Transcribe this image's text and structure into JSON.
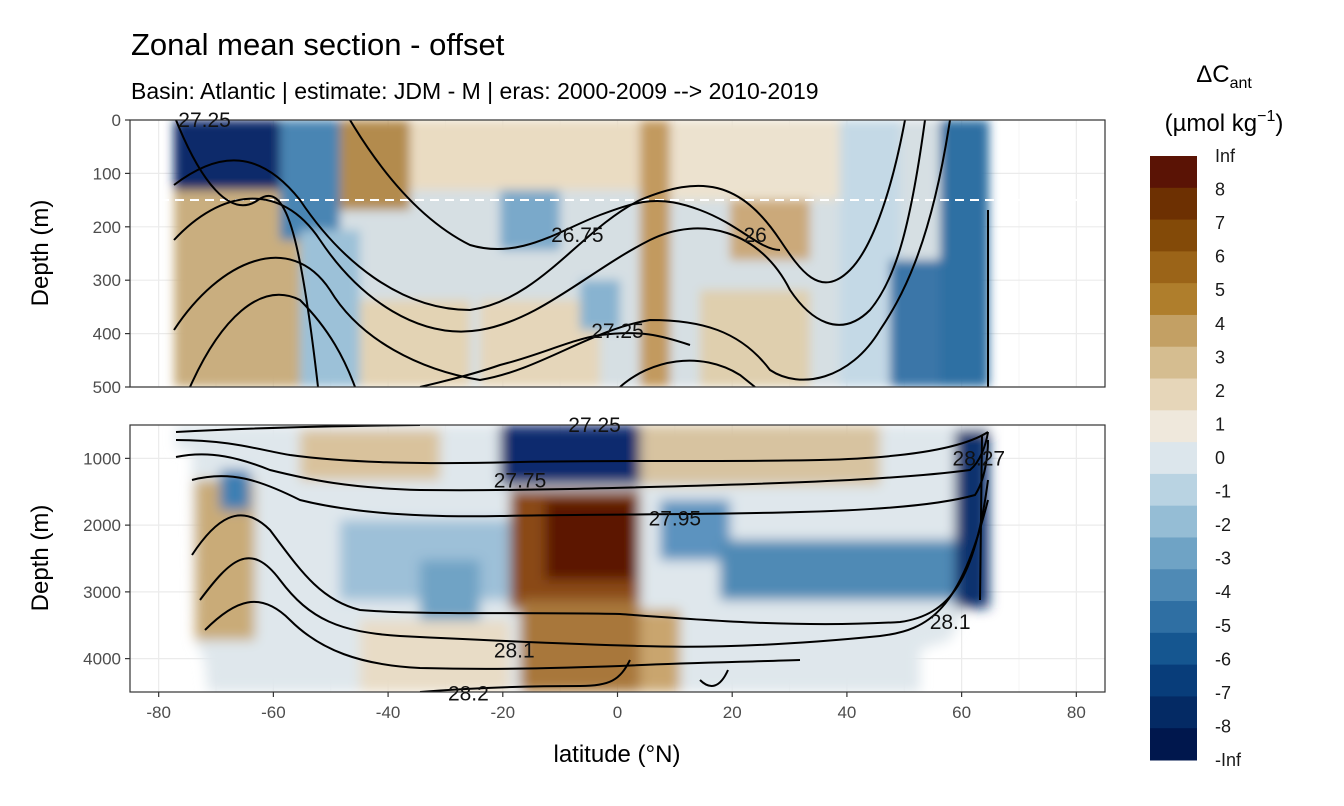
{
  "chart_data": {
    "type": "heatmap",
    "title": "Zonal mean section - offset",
    "subtitle": "Basin: Atlantic | estimate: JDM - M | eras: 2000-2009 --> 2010-2019",
    "xlabel": "latitude (°N)",
    "ylabel_upper": "Depth (m)",
    "ylabel_lower": "Depth (m)",
    "xlim": [
      -85,
      85
    ],
    "x_ticks": [
      -80,
      -60,
      -40,
      -20,
      0,
      20,
      40,
      60,
      80
    ],
    "x_tick_labels": [
      "-80",
      "-60",
      "-40",
      "-20",
      "0",
      "20",
      "40",
      "60",
      "80"
    ],
    "upper_panel": {
      "ylim": [
        0,
        500
      ],
      "y_ticks": [
        0,
        100,
        200,
        300,
        400,
        500
      ],
      "y_tick_labels": [
        "0",
        "100",
        "200",
        "300",
        "400",
        "500"
      ],
      "reference_line_depth": 150
    },
    "lower_panel": {
      "ylim": [
        500,
        4500
      ],
      "y_ticks": [
        1000,
        2000,
        3000,
        4000
      ],
      "y_tick_labels": [
        "1000",
        "2000",
        "3000",
        "4000"
      ]
    },
    "grid": true,
    "colorbar": {
      "title_main": "ΔC",
      "title_sub": "ant",
      "unit_main": "(µmol kg",
      "unit_sup": "−1",
      "unit_end": ")",
      "labels": [
        "Inf",
        "8",
        "7",
        "6",
        "5",
        "4",
        "3",
        "2",
        "1",
        "0",
        "-1",
        "-2",
        "-3",
        "-4",
        "-5",
        "-6",
        "-7",
        "-8",
        "-Inf"
      ],
      "colors": [
        "#5a1305",
        "#6d3002",
        "#834a08",
        "#9b6418",
        "#af7e2c",
        "#c3a064",
        "#d5bd90",
        "#e6d6b9",
        "#efe8dc",
        "#dce6ec",
        "#b9d3e2",
        "#95bdd5",
        "#6fa3c5",
        "#4f8ab5",
        "#2f6fa3",
        "#155690",
        "#083d7a",
        "#042a64",
        "#00174d"
      ]
    },
    "density_contours_upper": [
      {
        "label": "26.75",
        "lat": -7,
        "depth": 215
      },
      {
        "label": "26",
        "lat": 24,
        "depth": 215
      },
      {
        "label": "27.25",
        "lat": 0,
        "depth": 395
      },
      {
        "label": "27.25",
        "lat": -72,
        "depth": 0
      }
    ],
    "density_contours_lower": [
      {
        "label": "27.25",
        "lat": -4,
        "depth": 500
      },
      {
        "label": "27.75",
        "lat": -17,
        "depth": 1330
      },
      {
        "label": "27.95",
        "lat": 10,
        "depth": 1900
      },
      {
        "label": "28.1",
        "lat": -18,
        "depth": 3880
      },
      {
        "label": "28.1",
        "lat": 58,
        "depth": 3450
      },
      {
        "label": "28.2",
        "lat": -26,
        "depth": 4520
      },
      {
        "label": "28.27",
        "lat": 63,
        "depth": 1000
      }
    ]
  }
}
